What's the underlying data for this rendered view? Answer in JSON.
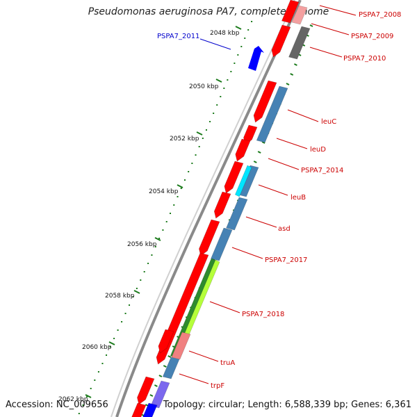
{
  "title": "Pseudomonas aeruginosa PA7, complete genome",
  "accession": "Accession: NC_009656",
  "summary": "Topology: circular; Length: 6,588,339 bp; Genes: 6,361",
  "colors": {
    "forward_red": "#ff0000",
    "reverse_blue": "#0000ff",
    "steel": "#4682b4",
    "label_red": "#cc0000",
    "label_blue": "#0000cc",
    "tick_green": "#1a7a1a"
  },
  "scale_ticks": [
    {
      "label": "2048 kbp"
    },
    {
      "label": "2050 kbp"
    },
    {
      "label": "2052 kbp"
    },
    {
      "label": "2054 kbp"
    },
    {
      "label": "2056 kbp"
    },
    {
      "label": "2058 kbp"
    },
    {
      "label": "2060 kbp"
    },
    {
      "label": "2062 kbp"
    }
  ],
  "genes": [
    {
      "name": "PSPA7_2008",
      "strand": "forward"
    },
    {
      "name": "PSPA7_2009",
      "strand": "forward"
    },
    {
      "name": "PSPA7_2010",
      "strand": "forward"
    },
    {
      "name": "PSPA7_2011",
      "strand": "reverse"
    },
    {
      "name": "leuC",
      "strand": "forward"
    },
    {
      "name": "leuD",
      "strand": "forward"
    },
    {
      "name": "PSPA7_2014",
      "strand": "forward"
    },
    {
      "name": "leuB",
      "strand": "forward"
    },
    {
      "name": "asd",
      "strand": "forward"
    },
    {
      "name": "PSPA7_2017",
      "strand": "forward"
    },
    {
      "name": "PSPA7_2018",
      "strand": "forward"
    },
    {
      "name": "truA",
      "strand": "forward"
    },
    {
      "name": "trpF",
      "strand": "forward"
    }
  ]
}
